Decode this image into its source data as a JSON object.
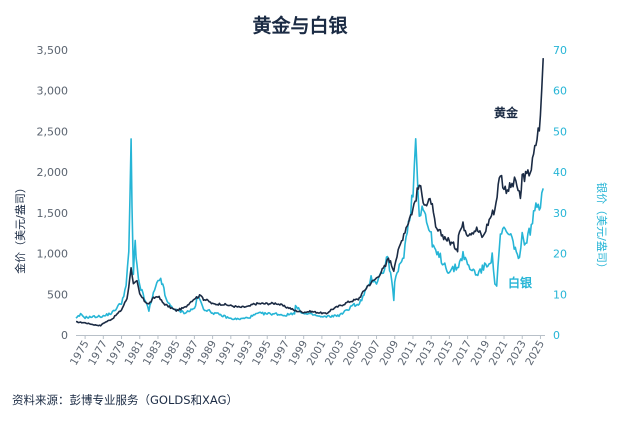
{
  "colors": {
    "gold": "#1b2b44",
    "silver": "#26b5d6",
    "title": "#1b2b44",
    "grid": "#eef0f2",
    "axis": "#b8c0c8"
  },
  "chart_data": {
    "type": "line",
    "title": "黄金与白银",
    "ylabel_left": "金价（美元/盎司）",
    "ylabel_right": "银价（美元/盎司）",
    "ylim_left": [
      0,
      3500
    ],
    "ylim_right": [
      0,
      70
    ],
    "y_ticks_left": [
      "0",
      "500",
      "1,000",
      "1,500",
      "2,000",
      "2,500",
      "3,000",
      "3,500"
    ],
    "y_ticks_right": [
      "0",
      "10",
      "20",
      "30",
      "40",
      "50",
      "60",
      "70"
    ],
    "x_ticks": [
      "1975",
      "1977",
      "1979",
      "1981",
      "1983",
      "1985",
      "1987",
      "1989",
      "1991",
      "1993",
      "1995",
      "1997",
      "1999",
      "2001",
      "2003",
      "2005",
      "2007",
      "2009",
      "2011",
      "2013",
      "2015",
      "2017",
      "2019",
      "2021",
      "2023",
      "2025"
    ],
    "xlim": [
      1974,
      2025.5
    ],
    "grid": false,
    "series": [
      {
        "name": "黄金",
        "axis": "left",
        "x": [
          1974,
          1975,
          1976,
          1976.7,
          1977,
          1978,
          1979,
          1979.6,
          1979.9,
          1980.05,
          1980.3,
          1980.7,
          1981,
          1981.5,
          1982,
          1982.5,
          1983,
          1983.5,
          1984,
          1985,
          1985.5,
          1986,
          1986.5,
          1987,
          1987.8,
          1988,
          1988.5,
          1989,
          1990,
          1991,
          1992,
          1993,
          1993.5,
          1994,
          1995,
          1996,
          1996.5,
          1997,
          1997.5,
          1998,
          1999,
          1999.8,
          2000,
          2001,
          2001.5,
          2002,
          2003,
          2004,
          2005,
          2006,
          2006.5,
          2007,
          2008,
          2008.3,
          2008.9,
          2009,
          2010,
          2011,
          2011.7,
          2012,
          2012.5,
          2013,
          2013.5,
          2014,
          2015,
          2015.9,
          2016,
          2016.5,
          2017,
          2018,
          2018.7,
          2019,
          2019.5,
          2020,
          2020.6,
          2021,
          2021.5,
          2022,
          2022.3,
          2022.8,
          2023,
          2023.5,
          2024,
          2024.5,
          2025,
          2025.3
        ],
        "values": [
          160,
          150,
          125,
          115,
          145,
          200,
          310,
          450,
          680,
          850,
          620,
          650,
          500,
          420,
          380,
          450,
          480,
          400,
          360,
          300,
          320,
          340,
          400,
          450,
          490,
          440,
          420,
          380,
          380,
          360,
          340,
          350,
          380,
          385,
          385,
          390,
          370,
          345,
          330,
          300,
          280,
          290,
          285,
          270,
          260,
          310,
          360,
          410,
          440,
          600,
          650,
          700,
          850,
          950,
          800,
          880,
          1250,
          1550,
          1850,
          1700,
          1600,
          1650,
          1300,
          1250,
          1150,
          1060,
          1250,
          1350,
          1250,
          1300,
          1200,
          1300,
          1450,
          1550,
          2000,
          1800,
          1800,
          1850,
          1900,
          1650,
          1950,
          1950,
          2050,
          2350,
          2650,
          3400
        ]
      },
      {
        "name": "白银",
        "axis": "right",
        "x": [
          1974,
          1974.5,
          1975,
          1976,
          1977,
          1978,
          1979,
          1979.5,
          1979.8,
          1980.05,
          1980.15,
          1980.3,
          1980.5,
          1980.7,
          1981,
          1981.5,
          1982,
          1982.5,
          1983,
          1983.3,
          1984,
          1985,
          1985.5,
          1986,
          1987,
          1987.4,
          1988,
          1989,
          1990,
          1991,
          1992,
          1993,
          1994,
          1995,
          1996,
          1997,
          1998,
          1998.1,
          1999,
          2000,
          2001,
          2002,
          2003,
          2004,
          2004.3,
          2005,
          2006,
          2006.4,
          2007,
          2008,
          2008.2,
          2008.9,
          2009,
          2010,
          2011,
          2011.3,
          2011.7,
          2012,
          2013,
          2013.5,
          2014,
          2015,
          2016,
          2016.5,
          2017,
          2018,
          2019,
          2019.7,
          2020,
          2020.2,
          2020.6,
          2021,
          2022,
          2022.7,
          2023,
          2023.5,
          2024,
          2024.5,
          2025,
          2025.3
        ],
        "values": [
          4,
          5,
          4.3,
          4.5,
          4.6,
          5.5,
          8,
          12,
          20,
          49,
          30,
          15,
          23,
          17,
          12,
          9,
          6,
          10,
          13,
          14,
          8,
          6,
          5.8,
          5.5,
          6.5,
          9.5,
          6.5,
          5.5,
          4.8,
          4,
          3.9,
          4.3,
          5.3,
          5.2,
          5.2,
          4.8,
          5.5,
          7,
          5.2,
          5,
          4.4,
          4.6,
          4.9,
          6.5,
          7.5,
          7.2,
          11.5,
          14,
          13,
          17,
          20,
          9,
          13,
          20,
          35,
          48,
          30,
          32,
          24,
          20,
          19,
          15.5,
          17,
          20,
          17,
          15,
          17,
          19,
          13,
          12,
          24,
          26,
          23,
          18,
          24,
          23,
          27,
          31,
          33,
          36
        ]
      }
    ]
  },
  "labels": {
    "gold_series_label": "黄金",
    "silver_series_label": "白银",
    "source": "资料来源：彭博专业服务（GOLDS和XAG）"
  }
}
